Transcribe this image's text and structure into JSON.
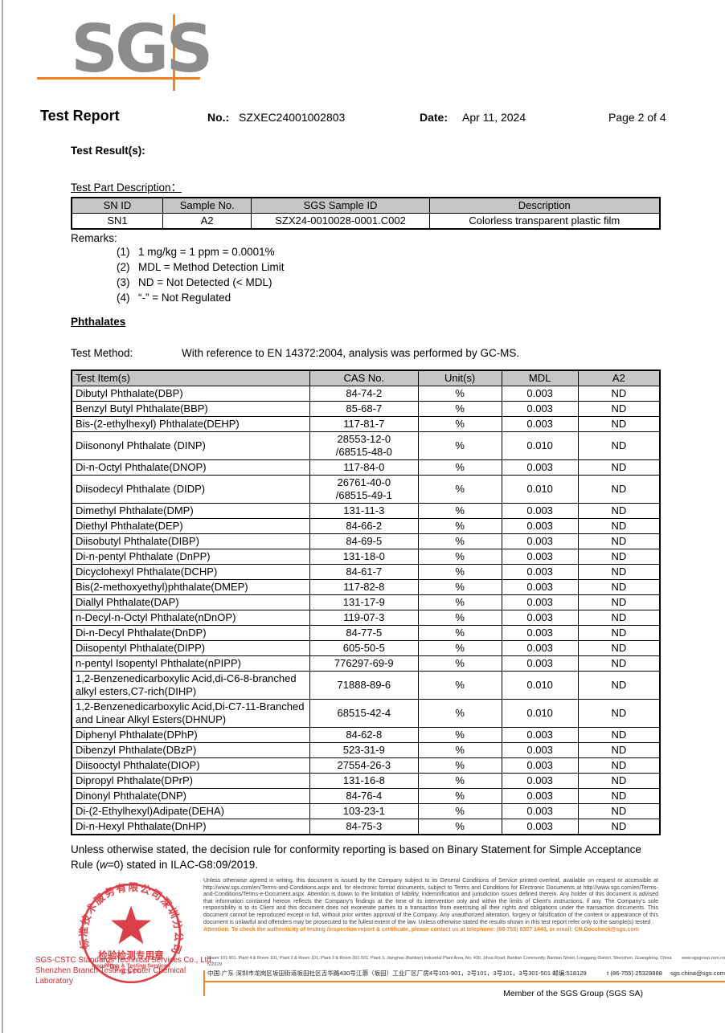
{
  "logo": {
    "text": "SGS"
  },
  "header": {
    "title": "Test Report",
    "no_label": "No.:",
    "no_value": "SZXEC24001002803",
    "date_label": "Date:",
    "date_value": "Apr 11, 2024",
    "page": "Page 2 of 4"
  },
  "sections": {
    "test_results_heading": "Test Result(s):",
    "test_part_heading": "Test Part Description：",
    "remarks_heading": "Remarks:",
    "phthalates_heading": "Phthalates",
    "test_method_label": "Test Method:",
    "test_method_value": "With reference to EN 14372:2004, analysis was performed by GC-MS."
  },
  "remarks": {
    "items": [
      {
        "num": "(1)",
        "text": "1 mg/kg = 1 ppm = 0.0001%"
      },
      {
        "num": "(2)",
        "text": "MDL = Method Detection Limit"
      },
      {
        "num": "(3)",
        "text": "ND = Not Detected (< MDL)"
      },
      {
        "num": "(4)",
        "text": "“-” = Not Regulated"
      }
    ]
  },
  "sample_table": {
    "headers": [
      "SN ID",
      "Sample No.",
      "SGS Sample ID",
      "Description"
    ],
    "rows": [
      [
        "SN1",
        "A2",
        "SZX24-0010028-0001.C002",
        "Colorless transparent plastic film"
      ]
    ]
  },
  "results_table": {
    "headers": [
      "Test Item(s)",
      "CAS No.",
      "Unit(s)",
      "MDL",
      "A2"
    ],
    "rows": [
      [
        "Dibutyl Phthalate(DBP)",
        "84-74-2",
        "%",
        "0.003",
        "ND"
      ],
      [
        "Benzyl Butyl Phthalate(BBP)",
        "85-68-7",
        "%",
        "0.003",
        "ND"
      ],
      [
        "Bis-(2-ethylhexyl) Phthalate(DEHP)",
        "117-81-7",
        "%",
        "0.003",
        "ND"
      ],
      [
        "Diisononyl Phthalate (DINP)",
        "28553-12-0\n/68515-48-0",
        "%",
        "0.010",
        "ND"
      ],
      [
        "Di-n-Octyl Phthalate(DNOP)",
        "117-84-0",
        "%",
        "0.003",
        "ND"
      ],
      [
        "Diisodecyl Phthalate (DIDP)",
        "26761-40-0\n/68515-49-1",
        "%",
        "0.010",
        "ND"
      ],
      [
        "Dimethyl Phthalate(DMP)",
        "131-11-3",
        "%",
        "0.003",
        "ND"
      ],
      [
        "Diethyl Phthalate(DEP)",
        "84-66-2",
        "%",
        "0.003",
        "ND"
      ],
      [
        "Diisobutyl Phthalate(DIBP)",
        "84-69-5",
        "%",
        "0.003",
        "ND"
      ],
      [
        "Di-n-pentyl Phthalate (DnPP)",
        "131-18-0",
        "%",
        "0.003",
        "ND"
      ],
      [
        "Dicyclohexyl Phthalate(DCHP)",
        "84-61-7",
        "%",
        "0.003",
        "ND"
      ],
      [
        "Bis(2-methoxyethyl)phthalate(DMEP)",
        "117-82-8",
        "%",
        "0.003",
        "ND"
      ],
      [
        "Diallyl Phthalate(DAP)",
        "131-17-9",
        "%",
        "0.003",
        "ND"
      ],
      [
        "n-Decyl-n-Octyl Phthalate(nDnOP)",
        "119-07-3",
        "%",
        "0.003",
        "ND"
      ],
      [
        "Di-n-Decyl Phthalate(DnDP)",
        "84-77-5",
        "%",
        "0.003",
        "ND"
      ],
      [
        "Diisopentyl Phthalate(DIPP)",
        "605-50-5",
        "%",
        "0.003",
        "ND"
      ],
      [
        "n-pentyl Isopentyl Phthalate(nPIPP)",
        "776297-69-9",
        "%",
        "0.003",
        "ND"
      ],
      [
        "1,2-Benzenedicarboxylic Acid,di-C6-8-branched alkyl esters,C7-rich(DIHP)",
        "71888-89-6",
        "%",
        "0.010",
        "ND"
      ],
      [
        "1,2-Benzenedicarboxylic Acid,Di-C7-11-Branched and Linear Alkyl Esters(DHNUP)",
        "68515-42-4",
        "%",
        "0.010",
        "ND"
      ],
      [
        "Diphenyl Phthalate(DPhP)",
        "84-62-8",
        "%",
        "0.003",
        "ND"
      ],
      [
        "Dibenzyl Phthalate(DBzP)",
        "523-31-9",
        "%",
        "0.003",
        "ND"
      ],
      [
        "Diisooctyl Phthalate(DIOP)",
        "27554-26-3",
        "%",
        "0.003",
        "ND"
      ],
      [
        "Dipropyl Phthalate(DPrP)",
        "131-16-8",
        "%",
        "0.003",
        "ND"
      ],
      [
        "Dinonyl Phthalate(DNP)",
        "84-76-4",
        "%",
        "0.003",
        "ND"
      ],
      [
        "Di-(2-Ethylhexyl)Adipate(DEHA)",
        "103-23-1",
        "%",
        "0.003",
        "ND"
      ],
      [
        "Di-n-Hexyl Phthalate(DnHP)",
        "84-75-3",
        "%",
        "0.003",
        "ND"
      ]
    ]
  },
  "decision_rule_parts": {
    "p1": "Unless otherwise stated, the decision rule for conformity reporting is based on Binary Statement for Simple Acceptance Rule (",
    "p2": "w",
    "p3": "=0) stated in ILAC-G8:09/2019."
  },
  "stamp": {
    "ring_text": "标准技术服务有限公司深圳分公司",
    "ring_bottom_text": "SGS-CSTC",
    "center_line1": "检验检测专用章",
    "center_line2": "Inspection & Testing Services",
    "company_line1": "SGS-CSTC Standards Technical Services Co., Ltd.",
    "company_line2": "Shenzhen Branch Testing Center Chemical Laboratory"
  },
  "footer": {
    "disclaimer": "Unless otherwise agreed in writing, this document is issued by the Company subject to its General Conditions of Service printed overleaf, available on request or accessible at http://www.sgs.com/en/Terms-and-Conditions.aspx and, for electronic format documents, subject to Terms and Conditions for Electronic Documents at http://www.sgs.com/en/Terms-and-Conditions/Terms-e-Document.aspx. Attention is drawn to the limitation of liability, indemnification and jurisdiction issues defined therein. Any holder of this document is advised that information contained hereon reflects the Company's findings at the time of its intervention only and within the limits of Client's instructions, if any. The Company's sole responsibility is to its Client and this document does not exonerate parties to a transaction from exercising all their rights and obligations under the transaction documents. This document cannot be reproduced except in full, without prior written approval of the Company. Any unauthorized alteration, forgery or falsification of the content or appearance of this document is unlawful and offenders may be prosecuted to the fullest extent of the law. Unless otherwise stated the results shown in this test report refer only to the sample(s) tested .",
    "attention": "Attention: To check the authenticity of testing /inspection report & certificate, please contact us at telephone: (86-755) 8307 1443, or email: CN.Doccheck@sgs.com",
    "address_en": "Room 101-901, Plant 4 & Room 101, Plant 2 & Room 101, Plant 3 & Room 301-501, Plant 3, Jianghao (Bantian) Industrial Plant Area, No. 430, Jihua Road, Bantian Community, Bantian Street, Longgang District, Shenzhen, Guangdong, China 518129",
    "website": "www.sgsgroup.com.cn",
    "address_cn": "中国·广东·深圳市龙岗区坂田街道坂田社区吉华路430号江灏（坂田）工业厂区厂房4号101-901，2号101，3号101，3号301-501 邮编:518129",
    "tel": "t (86-755) 25328888",
    "email": "sgs.china@sgs.com",
    "member": "Member of the SGS Group (SGS SA)"
  },
  "colors": {
    "accent_orange": "#f58220",
    "logo_gray": "#8c8c8c",
    "stamp_red": "#d4262e",
    "table_header_bg": "#c6c6c6"
  }
}
